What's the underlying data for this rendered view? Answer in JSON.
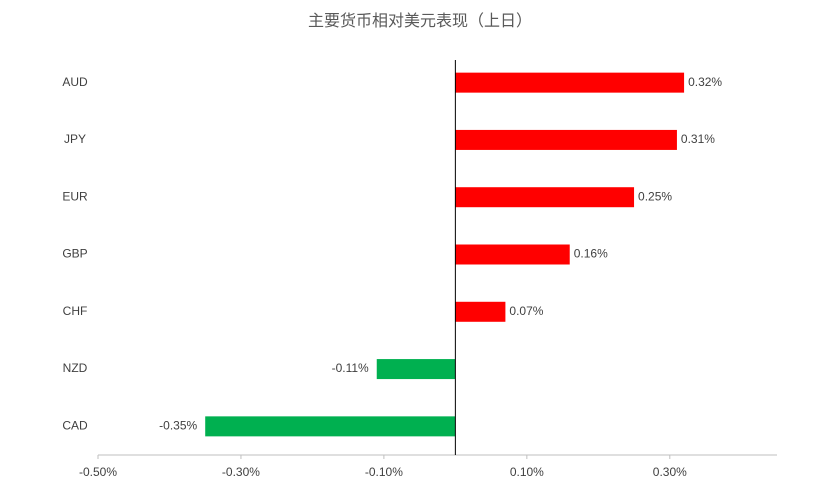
{
  "chart_data": {
    "type": "hbar",
    "title": "主要货币相对美元表现（上日）",
    "categories": [
      "AUD",
      "JPY",
      "EUR",
      "GBP",
      "CHF",
      "NZD",
      "CAD"
    ],
    "values": [
      0.32,
      0.31,
      0.25,
      0.16,
      0.07,
      -0.11,
      -0.35
    ],
    "value_labels": [
      "0.32%",
      "0.31%",
      "0.25%",
      "0.16%",
      "0.07%",
      "-0.11%",
      "-0.35%"
    ],
    "positive_color": "#ff0000",
    "negative_color": "#00b050",
    "xlim": [
      -0.5,
      0.45
    ],
    "xticks": [
      {
        "value": -0.5,
        "label": "-0.50%"
      },
      {
        "value": -0.3,
        "label": "-0.30%"
      },
      {
        "value": -0.1,
        "label": "-0.10%"
      },
      {
        "value": 0.1,
        "label": "0.10%"
      },
      {
        "value": 0.3,
        "label": "0.30%"
      }
    ]
  }
}
